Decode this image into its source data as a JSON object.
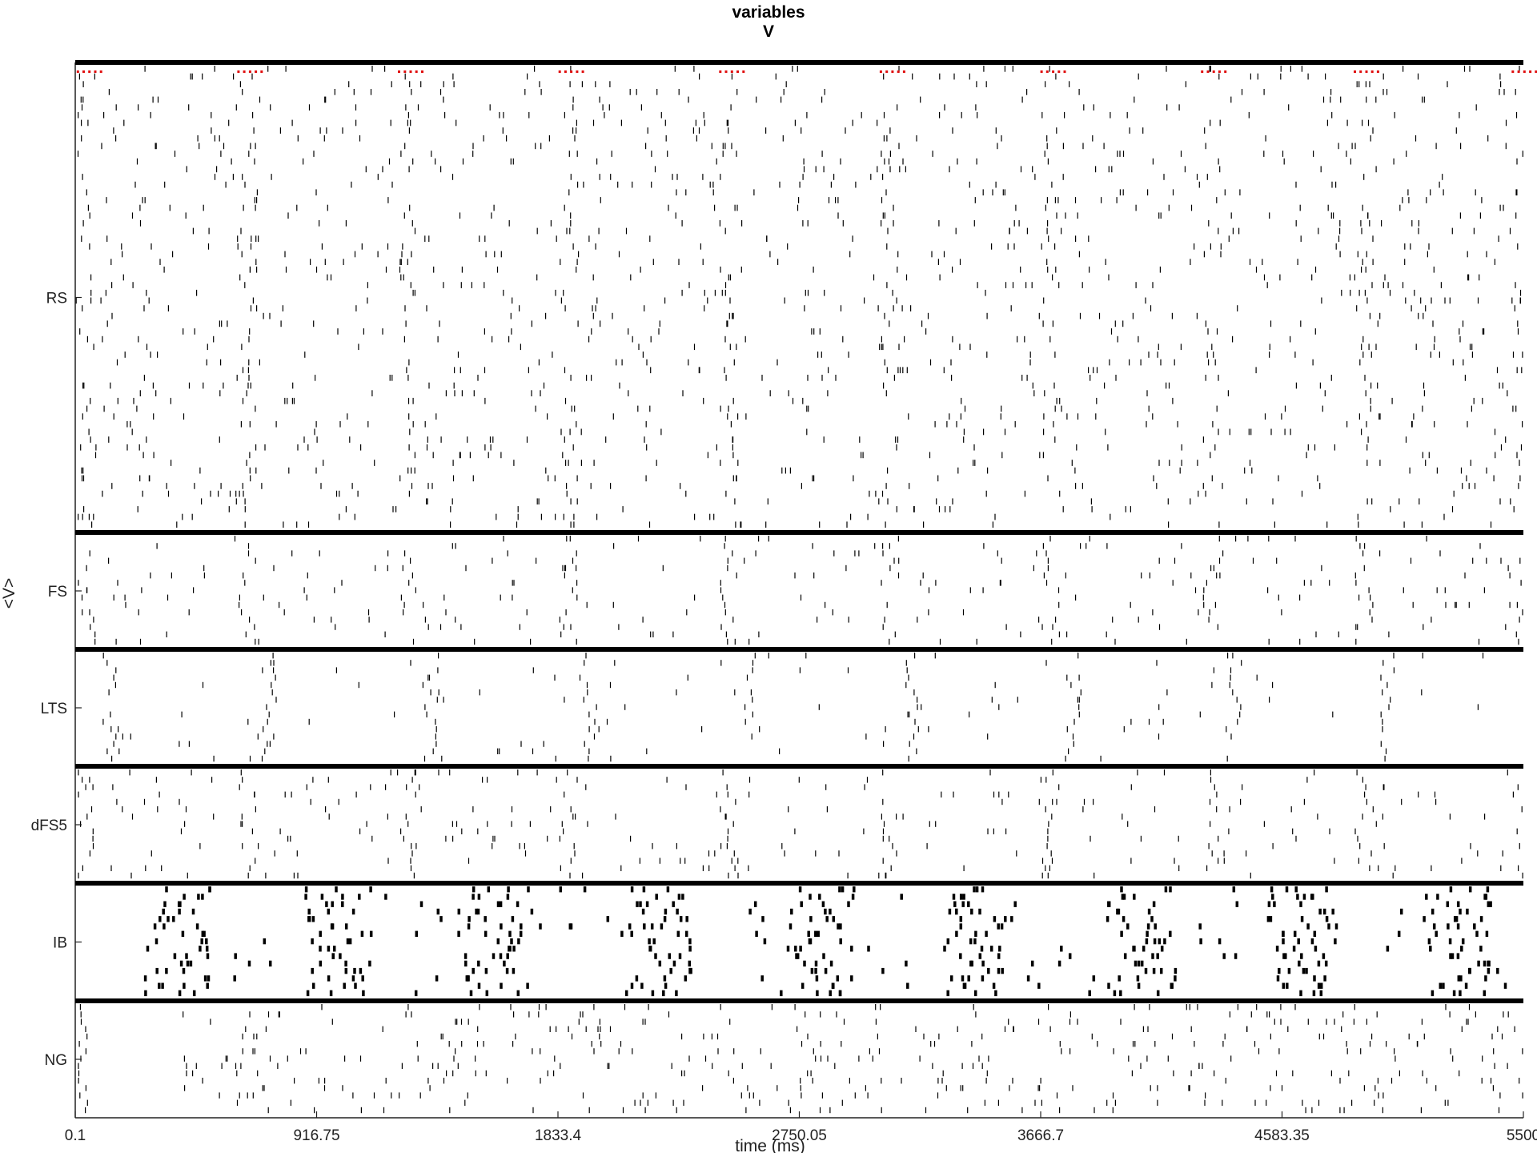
{
  "title": [
    "variables",
    "V"
  ],
  "chart_data": {
    "type": "raster",
    "xlabel": "time (ms)",
    "ylabel": "<V>",
    "xlim": [
      0.1,
      5500
    ],
    "xticks": [
      "0.1",
      "916.75",
      "1833.4",
      "2750.05",
      "3666.7",
      "4583.35",
      "5500"
    ],
    "xtick_values": [
      0.1,
      916.75,
      1833.4,
      2750.05,
      3666.7,
      4583.35,
      5500
    ],
    "grid": false,
    "populations": [
      {
        "name": "RS",
        "n_cells": 60
      },
      {
        "name": "FS",
        "n_cells": 15
      },
      {
        "name": "LTS",
        "n_cells": 15
      },
      {
        "name": "dFS5",
        "n_cells": 15
      },
      {
        "name": "IB",
        "n_cells": 15
      },
      {
        "name": "NG",
        "n_cells": 15
      }
    ],
    "burst_times": [
      10,
      620,
      1230,
      1840,
      2450,
      3060,
      3670,
      4280,
      4860,
      5460
    ],
    "stimulus_marker_color": "#e01010",
    "spike_color": "#000000",
    "separator_color": "#000000"
  }
}
